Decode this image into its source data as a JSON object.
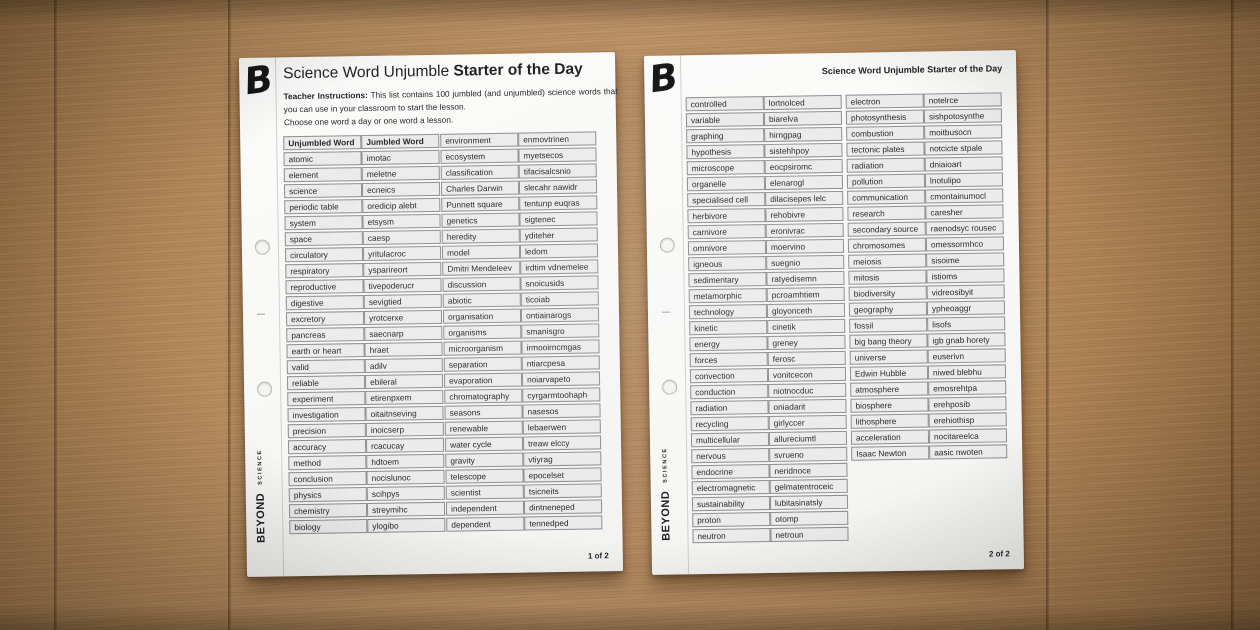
{
  "colors": {
    "wood": "#b68c5e",
    "paper": "#f9f9f8",
    "cell_fill": "#ebebeb",
    "cell_border": "#8e8e8e",
    "ink": "#262626"
  },
  "page1": {
    "logo": "B",
    "title_regular": "Science Word Unjumble ",
    "title_bold": "Starter of the Day",
    "instructions_lead": "Teacher Instructions:",
    "instructions_body": " This list contains 100 jumbled (and unjumbled) science words that you can use in your classroom to start the lesson.",
    "instructions_line2": "Choose one word a day or one word a lesson.",
    "brand_main": "BEYOND",
    "brand_sub": "SCIENCE",
    "page_number": "1 of 2",
    "table1_header": [
      "Unjumbled Word",
      "Jumbled Word"
    ],
    "table1": [
      [
        "atomic",
        "imotac"
      ],
      [
        "element",
        "meletne"
      ],
      [
        "science",
        "ecneics"
      ],
      [
        "periodic table",
        "oredicip alebt"
      ],
      [
        "system",
        "etsysm"
      ],
      [
        "space",
        "caesp"
      ],
      [
        "circulatory",
        "yritulacroc"
      ],
      [
        "respiratory",
        "ysparireort"
      ],
      [
        "reproductive",
        "tivepoderucr"
      ],
      [
        "digestive",
        "sevigtied"
      ],
      [
        "excretory",
        "yrotcerxe"
      ],
      [
        "pancreas",
        "saecnarp"
      ],
      [
        "earth or heart",
        "hraet"
      ],
      [
        "valid",
        "adilv"
      ],
      [
        "reliable",
        "ebileral"
      ],
      [
        "experiment",
        "etirenpxem"
      ],
      [
        "investigation",
        "oitaitnseving"
      ],
      [
        "precision",
        "inoicserp"
      ],
      [
        "accuracy",
        "rcacucay"
      ],
      [
        "method",
        "hdtoem"
      ],
      [
        "conclusion",
        "nocislunoc"
      ],
      [
        "physics",
        "scihpys"
      ],
      [
        "chemistry",
        "streymihc"
      ],
      [
        "biology",
        "ylogibo"
      ]
    ],
    "table2": [
      [
        "environment",
        "enmovtrinen"
      ],
      [
        "ecosystem",
        "myetsecos"
      ],
      [
        "classification",
        "tifacisalcsnio"
      ],
      [
        "Charles Darwin",
        "slecahr nawidr"
      ],
      [
        "Punnett square",
        "tentunp euqras"
      ],
      [
        "genetics",
        "sigtenec"
      ],
      [
        "heredity",
        "yditeher"
      ],
      [
        "model",
        "ledom"
      ],
      [
        "Dmitri Mendeleev",
        "irdtim vdnemelee"
      ],
      [
        "discussion",
        "snoicusids"
      ],
      [
        "abiotic",
        "ticoiab"
      ],
      [
        "organisation",
        "ontiainarogs"
      ],
      [
        "organisms",
        "smanisgro"
      ],
      [
        "microorganism",
        "irmooirncmgas"
      ],
      [
        "separation",
        "ntiarcpesa"
      ],
      [
        "evaporation",
        "noiarvapeto"
      ],
      [
        "chromatography",
        "cyrgarmtoohaph"
      ],
      [
        "seasons",
        "nasesos"
      ],
      [
        "renewable",
        "lebaerwen"
      ],
      [
        "water cycle",
        "treaw elccy"
      ],
      [
        "gravity",
        "vtiyrag"
      ],
      [
        "telescope",
        "epocelset"
      ],
      [
        "scientist",
        "tsicneits"
      ],
      [
        "independent",
        "dintneneped"
      ],
      [
        "dependent",
        "tennedped"
      ]
    ]
  },
  "page2": {
    "logo": "B",
    "header_title": "Science Word Unjumble Starter of the Day",
    "brand_main": "BEYOND",
    "brand_sub": "SCIENCE",
    "page_number": "2 of 2",
    "table1": [
      [
        "controlled",
        "lortnolced"
      ],
      [
        "variable",
        "biarelva"
      ],
      [
        "graphing",
        "hirngpag"
      ],
      [
        "hypothesis",
        "sistehhpoy"
      ],
      [
        "microscope",
        "eocpsiromc"
      ],
      [
        "organelle",
        "elenarogl"
      ],
      [
        "specialised cell",
        "dilacisepes lelc"
      ],
      [
        "herbivore",
        "rehobivre"
      ],
      [
        "carnivore",
        "eronivrac"
      ],
      [
        "omnivore",
        "moervino"
      ],
      [
        "igneous",
        "suegnio"
      ],
      [
        "sedimentary",
        "ratyedisemn"
      ],
      [
        "metamorphic",
        "pcroamhtiem"
      ],
      [
        "technology",
        "gloyonceth"
      ],
      [
        "kinetic",
        "cinetik"
      ],
      [
        "energy",
        "greney"
      ],
      [
        "forces",
        "ferosc"
      ],
      [
        "convection",
        "vonitcecon"
      ],
      [
        "conduction",
        "niotnocduc"
      ],
      [
        "radiation",
        "oniadarit"
      ],
      [
        "recycling",
        "girlyccer"
      ],
      [
        "multicellular",
        "allureciumtl"
      ],
      [
        "nervous",
        "svrueno"
      ],
      [
        "endocrine",
        "neridnoce"
      ],
      [
        "electromagnetic",
        "gelmatentroceic"
      ],
      [
        "sustainability",
        "lubitasinatsly"
      ],
      [
        "proton",
        "otomp"
      ],
      [
        "neutron",
        "netroun"
      ]
    ],
    "table2": [
      [
        "electron",
        "notelrce"
      ],
      [
        "photosynthesis",
        "sishpotosynthe"
      ],
      [
        "combustion",
        "moitbusocn"
      ],
      [
        "tectonic plates",
        "notcicte stpale"
      ],
      [
        "radiation",
        "dniaioart"
      ],
      [
        "pollution",
        "lnotulipo"
      ],
      [
        "communication",
        "cmontainumocl"
      ],
      [
        "research",
        "caresher"
      ],
      [
        "secondary source",
        "raenodsyc rousec"
      ],
      [
        "chromosomes",
        "omessormhco"
      ],
      [
        "meiosis",
        "sisoime"
      ],
      [
        "mitosis",
        "istioms"
      ],
      [
        "biodiversity",
        "vidreosibyit"
      ],
      [
        "geography",
        "ypheoaggr"
      ],
      [
        "fossil",
        "lisofs"
      ],
      [
        "big bang theory",
        "igb gnab horety"
      ],
      [
        "universe",
        "euserivn"
      ],
      [
        "Edwin Hubble",
        "niwed blebhu"
      ],
      [
        "atmosphere",
        "emosrehtpa"
      ],
      [
        "biosphere",
        "erehposib"
      ],
      [
        "lithosphere",
        "erehiothisp"
      ],
      [
        "acceleration",
        "nocitareelca"
      ],
      [
        "Isaac Newton",
        "aasic nwoten"
      ]
    ]
  }
}
